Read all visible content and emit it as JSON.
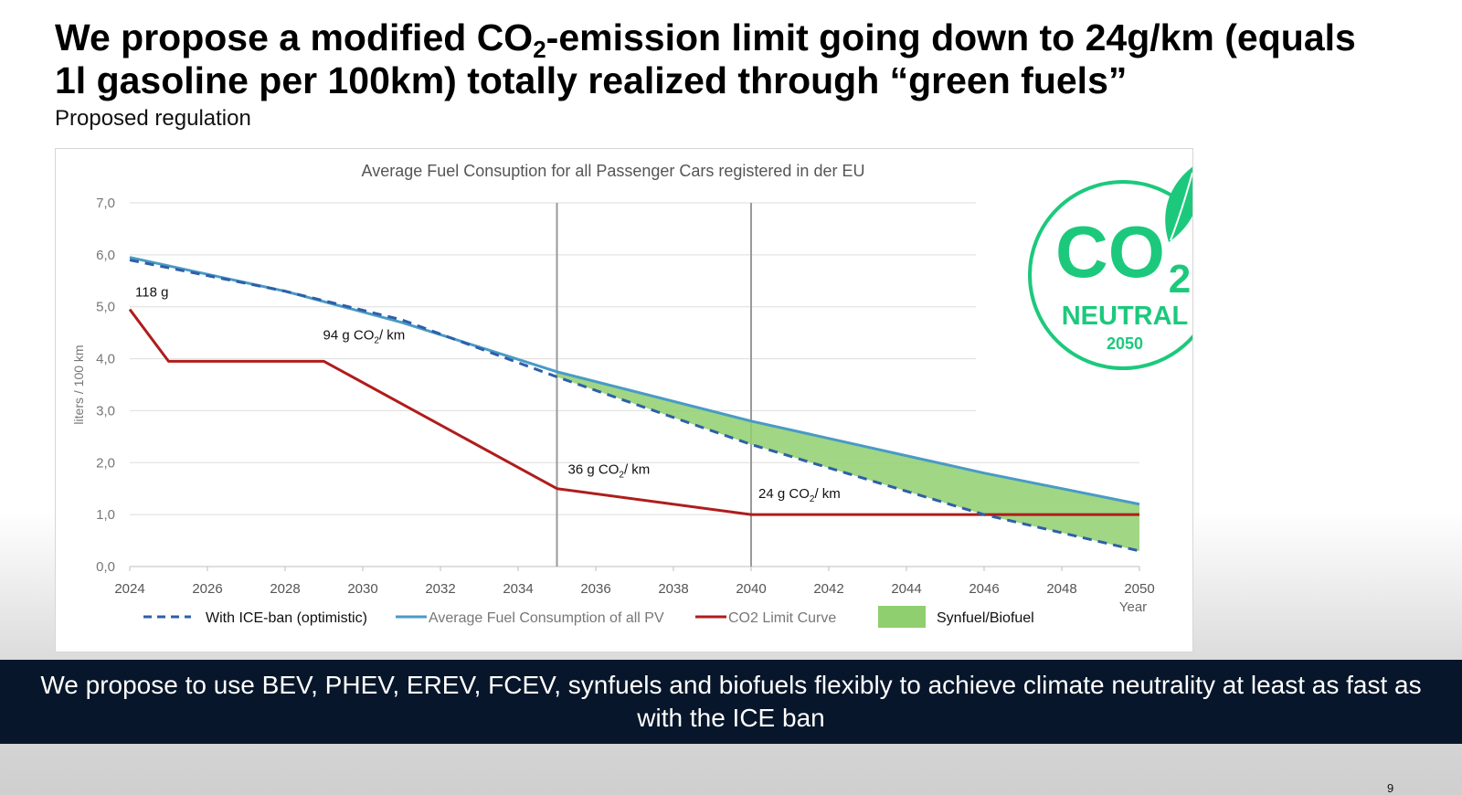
{
  "headline": {
    "part1": "We propose a modified CO",
    "sub": "2",
    "part2": "-emission limit going down to 24g/km (equals",
    "line2": "1l gasoline per 100km) totally realized through “green fuels”"
  },
  "subheadline": "Proposed regulation",
  "chart_data": {
    "type": "line",
    "title": "Average Fuel Consuption  for all Passenger Cars registered in der EU",
    "xlabel": "Year",
    "ylabel": "liters / 100 km",
    "xlim": [
      2024,
      2050
    ],
    "ylim": [
      0,
      7
    ],
    "x_ticks": [
      "2024",
      "2026",
      "2028",
      "2030",
      "2032",
      "2034",
      "2036",
      "2038",
      "2040",
      "2042",
      "2044",
      "2046",
      "2048",
      "2050"
    ],
    "y_ticks": [
      "0,0",
      "1,0",
      "2,0",
      "3,0",
      "4,0",
      "5,0",
      "6,0",
      "7,0"
    ],
    "grid": true,
    "reference_lines_x": [
      2035,
      2040
    ],
    "series": [
      {
        "name": "With ICE-ban (optimistic)",
        "style": "dashed",
        "color": "#2e5fa8",
        "x": [
          2024,
          2028,
          2031,
          2035,
          2040,
          2046,
          2050
        ],
        "y": [
          5.9,
          5.3,
          4.75,
          3.65,
          2.35,
          1.0,
          0.3
        ]
      },
      {
        "name": "Average Fuel Consumption of all PV",
        "style": "solid",
        "color": "#4a9ac6",
        "x": [
          2024,
          2028,
          2031,
          2035,
          2040,
          2046,
          2050
        ],
        "y": [
          5.95,
          5.3,
          4.7,
          3.75,
          2.8,
          1.8,
          1.2
        ]
      },
      {
        "name": "CO2 Limit Curve",
        "style": "solid",
        "color": "#b01c1c",
        "x": [
          2024,
          2025,
          2029,
          2035,
          2040,
          2050
        ],
        "y": [
          4.95,
          3.95,
          3.95,
          1.5,
          1.0,
          1.0
        ]
      }
    ],
    "shaded_area": {
      "name": "Synfuel/Biofuel",
      "color": "#8fcf6f",
      "between": [
        "Average Fuel Consumption of all PV",
        "With ICE-ban (optimistic)"
      ],
      "x_start": 2035,
      "x_end": 2050
    },
    "annotations": [
      {
        "x": 2024,
        "y": 4.95,
        "text": "118 g"
      },
      {
        "x": 2027,
        "y": 3.95,
        "text_main": "94 g CO",
        "text_sub": "2",
        "text_tail": "/ km"
      },
      {
        "x": 2035,
        "y": 1.5,
        "text_main": "36 g CO",
        "text_sub": "2",
        "text_tail": "/ km"
      },
      {
        "x": 2040,
        "y": 1.0,
        "text_main": "24 g CO",
        "text_sub": "2",
        "text_tail": "/ km"
      }
    ]
  },
  "badge": {
    "main": "CO",
    "sub": "2",
    "label": "NEUTRAL",
    "year": "2050",
    "color": "#1cc97c"
  },
  "caption": "We propose to use BEV, PHEV, EREV, FCEV, synfuels and biofuels flexibly to achieve climate neutrality at least as fast as with the ICE ban",
  "page_number": "9"
}
